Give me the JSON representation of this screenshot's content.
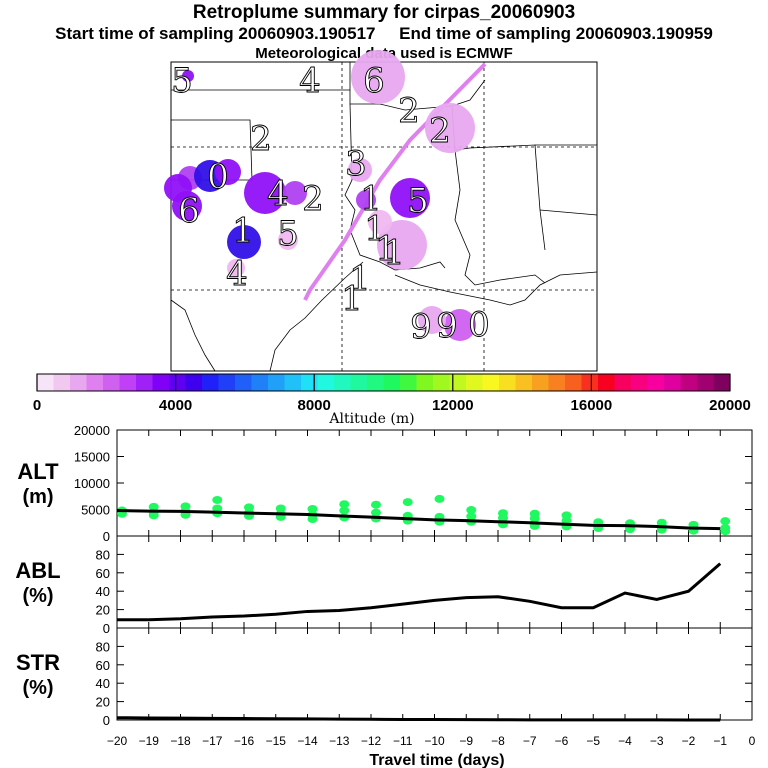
{
  "header": {
    "title": "Retroplume summary for cirpas_20060903",
    "start_label": "Start time of sampling 20060903.190517",
    "end_label": "End time of sampling 20060903.190959",
    "met_label": "Meteorological data used is ECMWF"
  },
  "colorbar": {
    "label": "Altitude (m)",
    "ticks": [
      "0",
      "4000",
      "8000",
      "12000",
      "16000",
      "20000"
    ],
    "range": [
      0,
      20000
    ],
    "colors": [
      "#f8e4f8",
      "#f0c8f0",
      "#e8a8f0",
      "#e080f0",
      "#d060f0",
      "#c040f8",
      "#a020f8",
      "#8000f8",
      "#6000f0",
      "#4000f0",
      "#2020f8",
      "#2040f8",
      "#2060f8",
      "#2080f8",
      "#20a0f8",
      "#20c0f8",
      "#20e0f8",
      "#20f8e0",
      "#20f8c0",
      "#20f8a0",
      "#20f880",
      "#20f860",
      "#40f840",
      "#80f820",
      "#a0f820",
      "#c0f820",
      "#e0f820",
      "#f8f820",
      "#f8e020",
      "#f8c020",
      "#f8a020",
      "#f88020",
      "#f86020",
      "#f83020",
      "#f80020",
      "#f80060",
      "#f80080",
      "#f800a0",
      "#e000a0",
      "#c00080",
      "#a00070",
      "#800060"
    ]
  },
  "map": {
    "plume_labels": [
      "5",
      "4",
      "6",
      "2",
      "2",
      "2",
      "3",
      "0",
      "6",
      "4",
      "1",
      "2",
      "5",
      "1",
      "1",
      "1",
      "5",
      "1",
      "9",
      "4",
      "1",
      "9",
      "0",
      "1"
    ],
    "plume_colors": {
      "purple": "#b040f0",
      "violet": "#9010f8",
      "blue": "#3010e8",
      "lilac": "#e8a8f0",
      "light_lilac": "#f0b8f0",
      "magenta": "#d060f0"
    }
  },
  "chart_data": [
    {
      "type": "line",
      "panel": "ALT",
      "ylabel": "ALT (m)",
      "ylim": [
        0,
        20000
      ],
      "yticks": [
        0,
        5000,
        10000,
        15000,
        20000
      ],
      "x": [
        -20,
        -19,
        -18,
        -17,
        -16,
        -15,
        -14,
        -13,
        -12,
        -11,
        -10,
        -9,
        -8,
        -7,
        -6,
        -5,
        -4,
        -3,
        -2,
        -1
      ],
      "values": [
        4800,
        4700,
        4650,
        4500,
        4350,
        4200,
        4050,
        3800,
        3550,
        3300,
        3050,
        2900,
        2700,
        2500,
        2250,
        2000,
        1950,
        1800,
        1500,
        1400
      ],
      "scatter_color": "#20f860",
      "scatter_points": [
        [
          -20,
          4800
        ],
        [
          -20,
          4200
        ],
        [
          -19,
          5500
        ],
        [
          -19,
          4500
        ],
        [
          -19,
          3900
        ],
        [
          -18,
          5600
        ],
        [
          -18,
          4700
        ],
        [
          -18,
          4000
        ],
        [
          -17,
          6800
        ],
        [
          -17,
          5200
        ],
        [
          -17,
          4300
        ],
        [
          -16,
          5400
        ],
        [
          -16,
          4400
        ],
        [
          -16,
          3800
        ],
        [
          -15,
          5200
        ],
        [
          -15,
          4200
        ],
        [
          -15,
          3600
        ],
        [
          -14,
          5100
        ],
        [
          -14,
          4000
        ],
        [
          -14,
          3200
        ],
        [
          -13,
          6000
        ],
        [
          -13,
          4800
        ],
        [
          -13,
          3500
        ],
        [
          -12,
          5900
        ],
        [
          -12,
          4400
        ],
        [
          -12,
          3300
        ],
        [
          -11,
          6400
        ],
        [
          -11,
          3800
        ],
        [
          -11,
          2900
        ],
        [
          -10,
          7000
        ],
        [
          -10,
          3600
        ],
        [
          -10,
          2700
        ],
        [
          -9,
          4900
        ],
        [
          -9,
          3700
        ],
        [
          -9,
          2700
        ],
        [
          -8,
          4300
        ],
        [
          -8,
          3400
        ],
        [
          -8,
          2200
        ],
        [
          -7,
          4200
        ],
        [
          -7,
          3300
        ],
        [
          -7,
          1900
        ],
        [
          -6,
          3900
        ],
        [
          -6,
          2900
        ],
        [
          -6,
          1800
        ],
        [
          -5,
          2600
        ],
        [
          -5,
          1900
        ],
        [
          -5,
          1500
        ],
        [
          -4,
          2400
        ],
        [
          -4,
          1700
        ],
        [
          -4,
          1300
        ],
        [
          -3,
          2500
        ],
        [
          -3,
          1800
        ],
        [
          -3,
          1200
        ],
        [
          -2,
          2100
        ],
        [
          -2,
          1500
        ],
        [
          -2,
          1000
        ],
        [
          -1,
          2800
        ],
        [
          -1,
          1500
        ],
        [
          -1,
          900
        ]
      ]
    },
    {
      "type": "line",
      "panel": "ABL",
      "ylabel": "ABL (%)",
      "ylim": [
        0,
        100
      ],
      "yticks": [
        0,
        20,
        40,
        60,
        80
      ],
      "x": [
        -20,
        -19,
        -18,
        -17,
        -16,
        -15,
        -14,
        -13,
        -12,
        -11,
        -10,
        -9,
        -8,
        -7,
        -6,
        -5,
        -4,
        -3,
        -2,
        -1
      ],
      "values": [
        9,
        9,
        10,
        12,
        13,
        15,
        18,
        19,
        22,
        26,
        30,
        33,
        34,
        29,
        22,
        22,
        38,
        31,
        40,
        70
      ]
    },
    {
      "type": "line",
      "panel": "STR",
      "ylabel": "STR (%)",
      "ylim": [
        0,
        100
      ],
      "yticks": [
        0,
        20,
        40,
        60,
        80
      ],
      "x": [
        -20,
        -19,
        -18,
        -17,
        -16,
        -15,
        -14,
        -13,
        -12,
        -11,
        -10,
        -9,
        -8,
        -7,
        -6,
        -5,
        -4,
        -3,
        -2,
        -1
      ],
      "values": [
        2.5,
        2.2,
        2,
        1.8,
        1.6,
        1.4,
        1.2,
        1,
        0.8,
        0.6,
        0.5,
        0.4,
        0.3,
        0.2,
        0.2,
        0.1,
        0.1,
        0.1,
        0,
        0
      ]
    }
  ],
  "xaxis": {
    "label": "Travel time (days)",
    "ticks": [
      "−20",
      "−19",
      "−18",
      "−17",
      "−16",
      "−15",
      "−14",
      "−13",
      "−12",
      "−11",
      "−10",
      "−9",
      "−8",
      "−7",
      "−6",
      "−5",
      "−4",
      "−3",
      "−2",
      "−1",
      "0"
    ],
    "range": [
      -20,
      0
    ]
  },
  "panel_labels": {
    "alt": [
      "ALT",
      "(m)"
    ],
    "abl": [
      "ABL",
      "(%)"
    ],
    "str": [
      "STR",
      "(%)"
    ]
  }
}
